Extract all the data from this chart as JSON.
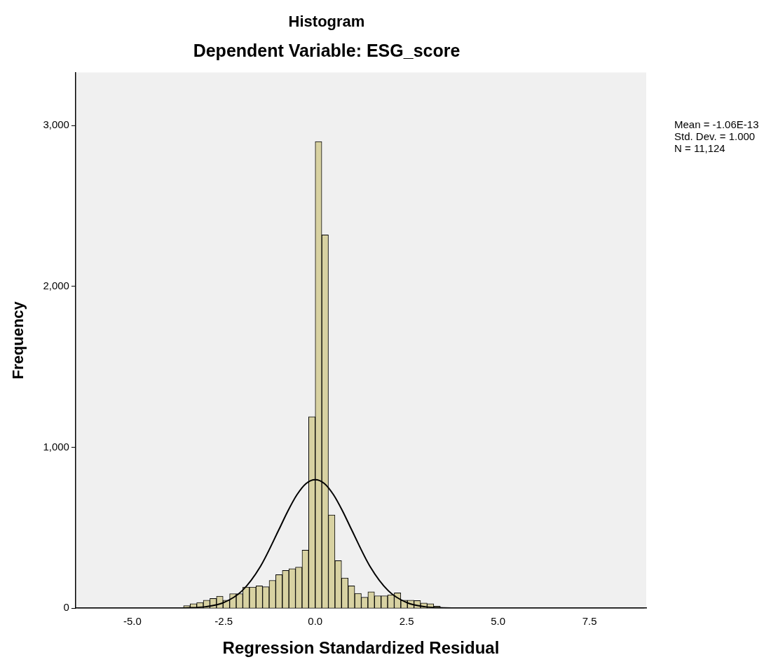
{
  "chart_data": {
    "type": "histogram",
    "title": "Histogram",
    "subtitle": "Dependent Variable: ESG_score",
    "xlabel": "Regression Standardized Residual",
    "ylabel": "Frequency",
    "bins": [
      -3.96,
      -3.78,
      -3.6,
      -3.42,
      -3.24,
      -3.06,
      -2.88,
      -2.7,
      -2.52,
      -2.34,
      -2.16,
      -1.98,
      -1.8,
      -1.62,
      -1.44,
      -1.26,
      -1.08,
      -0.9,
      -0.72,
      -0.54,
      -0.36,
      -0.18,
      0,
      0.18,
      0.36,
      0.54,
      0.72,
      0.9,
      1.08,
      1.26,
      1.44,
      1.62,
      1.8,
      1.98,
      2.16,
      2.34,
      2.52,
      2.7,
      2.88,
      3.06,
      3.24,
      3.42,
      3.6,
      3.78
    ],
    "values": [
      null,
      null,
      16,
      28,
      35,
      50,
      60,
      75,
      50,
      90,
      90,
      131,
      131,
      139,
      133,
      173,
      208,
      235,
      245,
      255,
      361,
      1190,
      2900,
      2320,
      580,
      296,
      188,
      139,
      92,
      68,
      102,
      77,
      77,
      83,
      95,
      50,
      50,
      47,
      32,
      28,
      13,
      null,
      3
    ],
    "color": "#d8d2a2",
    "series": [
      {
        "type": "line",
        "color": "#000000",
        "marker": "none",
        "x": [
          -6.5,
          -5,
          -4,
          -3.5,
          -3,
          -2.5,
          -2,
          -1.5,
          -1,
          -0.75,
          -0.5,
          -0.25,
          0,
          0.25,
          0.5,
          0.75,
          1,
          1.5,
          2,
          2.5,
          3,
          3.5,
          4,
          5,
          9
        ],
        "values": [
          0,
          0,
          0,
          2,
          9,
          35,
          108,
          259,
          485,
          603,
          705,
          775,
          799,
          775,
          705,
          603,
          485,
          259,
          108,
          35,
          9,
          2,
          0,
          0,
          0
        ]
      }
    ],
    "xlim": [
      -6.55,
      9.05
    ],
    "xticks": [
      {
        "value": -5,
        "label": "-5.0"
      },
      {
        "value": -2.5,
        "label": "-2.5"
      },
      {
        "value": 0,
        "label": "0.0"
      },
      {
        "value": 2.5,
        "label": "2.5"
      },
      {
        "value": 5,
        "label": "5.0"
      },
      {
        "value": 7.5,
        "label": "7.5"
      }
    ],
    "ylim": [
      0,
      3330
    ],
    "yticks": [
      0,
      {
        "value": 1000,
        "label": "1,000"
      },
      {
        "value": 2000,
        "label": "2,000"
      },
      {
        "value": 3000,
        "label": "3,000"
      }
    ],
    "grid": false,
    "legend": false,
    "annotations": [
      "Mean = -1.06E-13",
      "Std. Dev. = 1.000",
      "N = 11,124"
    ]
  }
}
